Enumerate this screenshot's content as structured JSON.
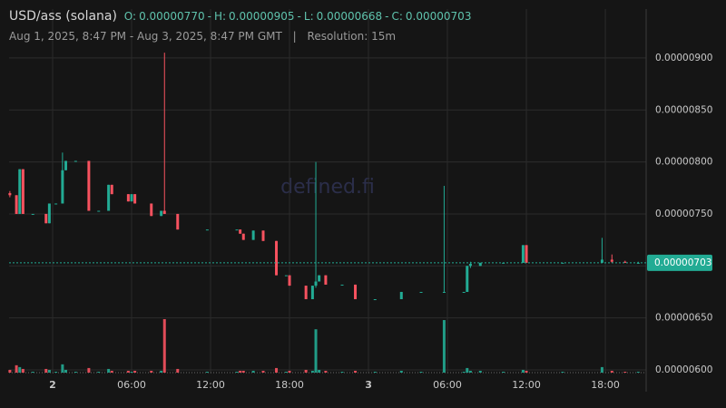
{
  "header": {
    "pair": "USD/ass (solana)",
    "separator": "-",
    "ohlc": [
      {
        "prefix": "O:",
        "value": {
          "value": 7.7e-06,
          "label": "0.00000770"
        }
      },
      {
        "prefix": "H:",
        "value": {
          "value": 9.05e-06,
          "label": "0.00000905"
        }
      },
      {
        "prefix": "L:",
        "value": {
          "value": 6.68e-06,
          "label": "0.00000668"
        }
      },
      {
        "prefix": "C:",
        "value": {
          "value": 7.03e-06,
          "label": "0.00000703"
        }
      }
    ],
    "range": "Aug 1, 2025, 8:47 PM - Aug 3, 2025, 8:47 PM GMT",
    "divider": "|",
    "resolution": "Resolution: 15m"
  },
  "watermark": "defined.fi",
  "chart_data": {
    "type": "candlestick",
    "x": [
      -3.25,
      -2.75,
      -2.5,
      -2.25,
      -1.5,
      -0.5,
      -0.25,
      0.25,
      0.75,
      1,
      1.75,
      2.75,
      3.5,
      4.25,
      4.5,
      5.75,
      6,
      6.25,
      7.5,
      8.25,
      8.5,
      9.5,
      11.75,
      14,
      14.25,
      14.5,
      15.25,
      16,
      17,
      17.75,
      18,
      19.25,
      19.75,
      20,
      20.25,
      20.75,
      22,
      23,
      24.5,
      26.5,
      28,
      29.75,
      31.25,
      31.5,
      31.75,
      32.5,
      34.25,
      35.75,
      36,
      38.75,
      41.75,
      42.5,
      43.5,
      44.5
    ],
    "open": [
      7.7e-06,
      7.68e-06,
      7.5e-06,
      7.93e-06,
      7.5e-06,
      7.5e-06,
      7.41e-06,
      7.6e-06,
      7.6e-06,
      7.92e-06,
      8.01e-06,
      8.01e-06,
      7.53e-06,
      7.53e-06,
      7.78e-06,
      7.69e-06,
      7.62e-06,
      7.69e-06,
      7.6e-06,
      7.48e-06,
      7.53e-06,
      7.5e-06,
      7.35e-06,
      7.35e-06,
      7.35e-06,
      7.31e-06,
      7.25e-06,
      7.34e-06,
      7.24e-06,
      6.91e-06,
      6.91e-06,
      6.81e-06,
      6.68e-06,
      6.81e-06,
      6.85e-06,
      6.91e-06,
      6.82e-06,
      6.82e-06,
      6.68e-06,
      6.68e-06,
      6.75e-06,
      6.75e-06,
      6.75e-06,
      6.75e-06,
      7e-06,
      7e-06,
      7.03e-06,
      7.03e-06,
      7.2e-06,
      7.03e-06,
      7.03e-06,
      7.06e-06,
      7.04e-06,
      7.03e-06
    ],
    "high": [
      7.72e-06,
      7.68e-06,
      7.93e-06,
      7.93e-06,
      7.5e-06,
      7.5e-06,
      7.6e-06,
      7.6e-06,
      8.09e-06,
      8.01e-06,
      8.01e-06,
      8.01e-06,
      7.53e-06,
      7.78e-06,
      7.78e-06,
      7.69e-06,
      7.69e-06,
      7.69e-06,
      7.6e-06,
      7.53e-06,
      9.05e-06,
      7.5e-06,
      7.35e-06,
      7.35e-06,
      7.35e-06,
      7.31e-06,
      7.34e-06,
      7.34e-06,
      7.24e-06,
      6.91e-06,
      6.91e-06,
      6.81e-06,
      6.81e-06,
      8e-06,
      6.91e-06,
      6.91e-06,
      6.82e-06,
      6.82e-06,
      6.68e-06,
      6.75e-06,
      6.75e-06,
      7.77e-06,
      6.75e-06,
      7e-06,
      7.04e-06,
      7.03e-06,
      7.03e-06,
      7.2e-06,
      7.2e-06,
      7.03e-06,
      7.27e-06,
      7.11e-06,
      7.05e-06,
      7.04e-06
    ],
    "low": [
      7.66e-06,
      7.5e-06,
      7.5e-06,
      7.5e-06,
      7.5e-06,
      7.41e-06,
      7.41e-06,
      7.6e-06,
      7.6e-06,
      7.92e-06,
      8.01e-06,
      7.53e-06,
      7.53e-06,
      7.53e-06,
      7.69e-06,
      7.62e-06,
      7.62e-06,
      7.6e-06,
      7.48e-06,
      7.48e-06,
      7.5e-06,
      7.35e-06,
      7.35e-06,
      7.35e-06,
      7.31e-06,
      7.25e-06,
      7.25e-06,
      7.24e-06,
      6.91e-06,
      6.91e-06,
      6.81e-06,
      6.68e-06,
      6.68e-06,
      6.79e-06,
      6.85e-06,
      6.82e-06,
      6.82e-06,
      6.68e-06,
      6.68e-06,
      6.68e-06,
      6.75e-06,
      6.75e-06,
      6.75e-06,
      6.75e-06,
      6.98e-06,
      7e-06,
      7.03e-06,
      7.03e-06,
      7.03e-06,
      7.03e-06,
      7.03e-06,
      7.03e-06,
      7.03e-06,
      7.02e-06
    ],
    "close": [
      7.68e-06,
      7.5e-06,
      7.93e-06,
      7.5e-06,
      7.5e-06,
      7.41e-06,
      7.6e-06,
      7.6e-06,
      7.92e-06,
      8.01e-06,
      8.01e-06,
      7.53e-06,
      7.53e-06,
      7.78e-06,
      7.69e-06,
      7.62e-06,
      7.69e-06,
      7.6e-06,
      7.48e-06,
      7.53e-06,
      7.5e-06,
      7.35e-06,
      7.35e-06,
      7.35e-06,
      7.31e-06,
      7.25e-06,
      7.34e-06,
      7.24e-06,
      6.91e-06,
      6.91e-06,
      6.81e-06,
      6.68e-06,
      6.81e-06,
      6.85e-06,
      6.91e-06,
      6.82e-06,
      6.82e-06,
      6.68e-06,
      6.68e-06,
      6.75e-06,
      6.75e-06,
      6.75e-06,
      6.75e-06,
      7e-06,
      7.02e-06,
      7.03e-06,
      7.03e-06,
      7.2e-06,
      7.03e-06,
      7.03e-06,
      7.06e-06,
      7.04e-06,
      7.03e-06,
      7.03e-06
    ],
    "volume": [
      3,
      8,
      6,
      4,
      1,
      4,
      3,
      1,
      9,
      3,
      1,
      5,
      1,
      4,
      2,
      2,
      1,
      2,
      2,
      2,
      58,
      4,
      1,
      1,
      2,
      2,
      2,
      2,
      5,
      1,
      2,
      3,
      2,
      47,
      3,
      2,
      1,
      2,
      1,
      2,
      1,
      57,
      1,
      5,
      2,
      2,
      1,
      3,
      2,
      1,
      6,
      2,
      1,
      1
    ],
    "up_color": "#22ab94",
    "down_color": "#f7525f",
    "xlim": [
      -3.31,
      45.1
    ],
    "xticks": [
      {
        "value": 0,
        "label": "2"
      },
      {
        "value": 6,
        "label": "06:00"
      },
      {
        "value": 12,
        "label": "12:00"
      },
      {
        "value": 18,
        "label": "18:00"
      },
      {
        "value": 24,
        "label": "3"
      },
      {
        "value": 30,
        "label": "06:00"
      },
      {
        "value": 36,
        "label": "12:00"
      },
      {
        "value": 42,
        "label": "18:00"
      }
    ],
    "ylim": [
      5.965e-06,
      9.47e-06
    ],
    "yticks": [
      {
        "value": 6e-06,
        "label": "0.00000600"
      },
      {
        "value": 6.5e-06,
        "label": "0.00000650"
      },
      {
        "value": 7e-06,
        "label": "0.00000700"
      },
      {
        "value": 7.5e-06,
        "label": "0.00000750"
      },
      {
        "value": 8e-06,
        "label": "0.00000800"
      },
      {
        "value": 8.5e-06,
        "label": "0.00000850"
      },
      {
        "value": 9e-06,
        "label": "0.00000900"
      }
    ],
    "last_price": {
      "value": 7.03e-06,
      "label": "0.00000703"
    },
    "grid": true
  }
}
